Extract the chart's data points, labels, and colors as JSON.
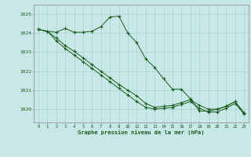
{
  "xlabel": "Graphe pression niveau de la mer (hPa)",
  "background_color": "#c8e8e8",
  "grid_color": "#aad4d4",
  "line_color": "#1a5c1a",
  "x_ticks": [
    0,
    1,
    2,
    3,
    4,
    5,
    6,
    7,
    8,
    9,
    10,
    11,
    12,
    13,
    14,
    15,
    16,
    17,
    18,
    19,
    20,
    21,
    22,
    23
  ],
  "ylim": [
    1019.3,
    1025.5
  ],
  "yticks": [
    1020,
    1021,
    1022,
    1023,
    1024,
    1025
  ],
  "line1": [
    1024.2,
    1024.1,
    1024.05,
    1024.25,
    1024.05,
    1024.05,
    1024.1,
    1024.35,
    1024.85,
    1024.9,
    1024.0,
    1023.5,
    1022.65,
    1022.2,
    1021.6,
    1021.05,
    1021.05,
    1020.55,
    1019.9,
    1019.9,
    1020.0,
    1020.15,
    1020.4,
    1019.8
  ],
  "line2": [
    1024.2,
    1024.1,
    1023.75,
    1023.35,
    1023.05,
    1022.7,
    1022.35,
    1022.0,
    1021.65,
    1021.3,
    1021.0,
    1020.7,
    1020.3,
    1020.1,
    1020.15,
    1020.2,
    1020.35,
    1020.5,
    1020.2,
    1020.0,
    1020.0,
    1020.15,
    1020.4,
    1019.8
  ],
  "line3": [
    1024.2,
    1024.1,
    1023.6,
    1023.2,
    1022.85,
    1022.5,
    1022.15,
    1021.8,
    1021.45,
    1021.1,
    1020.75,
    1020.4,
    1020.1,
    1020.0,
    1020.05,
    1020.1,
    1020.25,
    1020.4,
    1020.05,
    1019.85,
    1019.85,
    1020.05,
    1020.3,
    1019.75
  ]
}
